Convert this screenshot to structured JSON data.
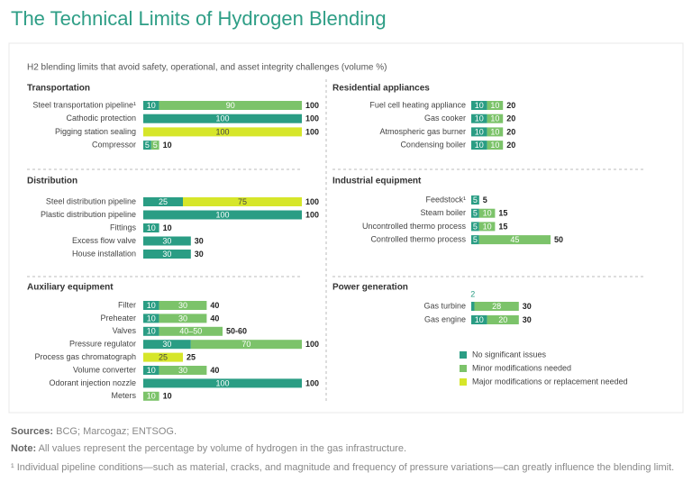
{
  "chart_data": {
    "type": "bar",
    "orientation": "horizontal",
    "stacked": true,
    "title": "The Technical Limits of Hydrogen Blending",
    "subtitle": "H2 blending limits that avoid safety, operational, and asset integrity challenges (volume %)",
    "series": [
      {
        "name": "No significant issues",
        "color": "#2a9d84"
      },
      {
        "name": "Minor modifications needed",
        "color": "#7cc36a"
      },
      {
        "name": "Major modifications or replacement needed",
        "color": "#d6e62a"
      }
    ],
    "panels": [
      {
        "title": "Transportation",
        "categories": [
          "Steel transportation pipeline¹",
          "Cathodic protection",
          "Pigging station sealing",
          "Compressor"
        ],
        "values": [
          [
            10,
            100,
            null,
            5
          ],
          [
            90,
            null,
            null,
            5
          ],
          [
            null,
            null,
            100,
            null
          ]
        ],
        "totals": [
          100,
          100,
          100,
          10
        ]
      },
      {
        "title": "Residential appliances",
        "categories": [
          "Fuel cell heating appliance",
          "Gas cooker",
          "Atmospheric gas burner",
          "Condensing boiler"
        ],
        "values": [
          [
            10,
            10,
            10,
            10
          ],
          [
            10,
            10,
            10,
            10
          ],
          [
            null,
            null,
            null,
            null
          ]
        ],
        "totals": [
          20,
          20,
          20,
          20
        ]
      },
      {
        "title": "Distribution",
        "categories": [
          "Steel distribution pipeline",
          "Plastic distribution pipeline",
          "Fittings",
          "Excess flow valve",
          "House installation"
        ],
        "values": [
          [
            25,
            100,
            10,
            30,
            30
          ],
          [
            null,
            null,
            null,
            null,
            null
          ],
          [
            75,
            null,
            null,
            null,
            null
          ]
        ],
        "totals": [
          100,
          100,
          10,
          30,
          30
        ]
      },
      {
        "title": "Industrial equipment",
        "categories": [
          "Feedstock¹",
          "Steam boiler",
          "Uncontrolled thermo process",
          "Controlled thermo process"
        ],
        "values": [
          [
            5,
            5,
            5,
            5
          ],
          [
            null,
            10,
            10,
            45
          ],
          [
            null,
            null,
            null,
            null
          ]
        ],
        "totals": [
          5,
          15,
          15,
          50
        ]
      },
      {
        "title": "Auxiliary equipment",
        "categories": [
          "Filter",
          "Preheater",
          "Valves",
          "Pressure regulator",
          "Process gas chromatograph",
          "Volume converter",
          "Odorant injection nozzle",
          "Meters"
        ],
        "values": [
          [
            10,
            10,
            10,
            30,
            null,
            10,
            100,
            null
          ],
          [
            30,
            30,
            {
              "value": 40,
              "label": "40–50"
            },
            70,
            null,
            30,
            null,
            10
          ],
          [
            null,
            null,
            null,
            null,
            25,
            null,
            null,
            null
          ]
        ],
        "totals": [
          40,
          40,
          {
            "value": 50,
            "label": "50-60"
          },
          100,
          25,
          40,
          100,
          10
        ]
      },
      {
        "title": "Power generation",
        "categories": [
          "Gas turbine",
          "Gas engine"
        ],
        "values": [
          [
            2,
            10
          ],
          [
            28,
            20
          ],
          [
            null,
            null
          ]
        ],
        "totals": [
          30,
          30
        ]
      }
    ]
  },
  "footer": {
    "sources_label": "Sources:",
    "sources": "BCG; Marcogaz; ENTSOG.",
    "note_label": "Note:",
    "note": "All values represent the percentage by volume of hydrogen in the gas infrastructure.",
    "footnote": "¹ Individual pipeline conditions—such as material, cracks, and magnitude and frequency of pressure variations—can greatly influence the blending limit."
  }
}
